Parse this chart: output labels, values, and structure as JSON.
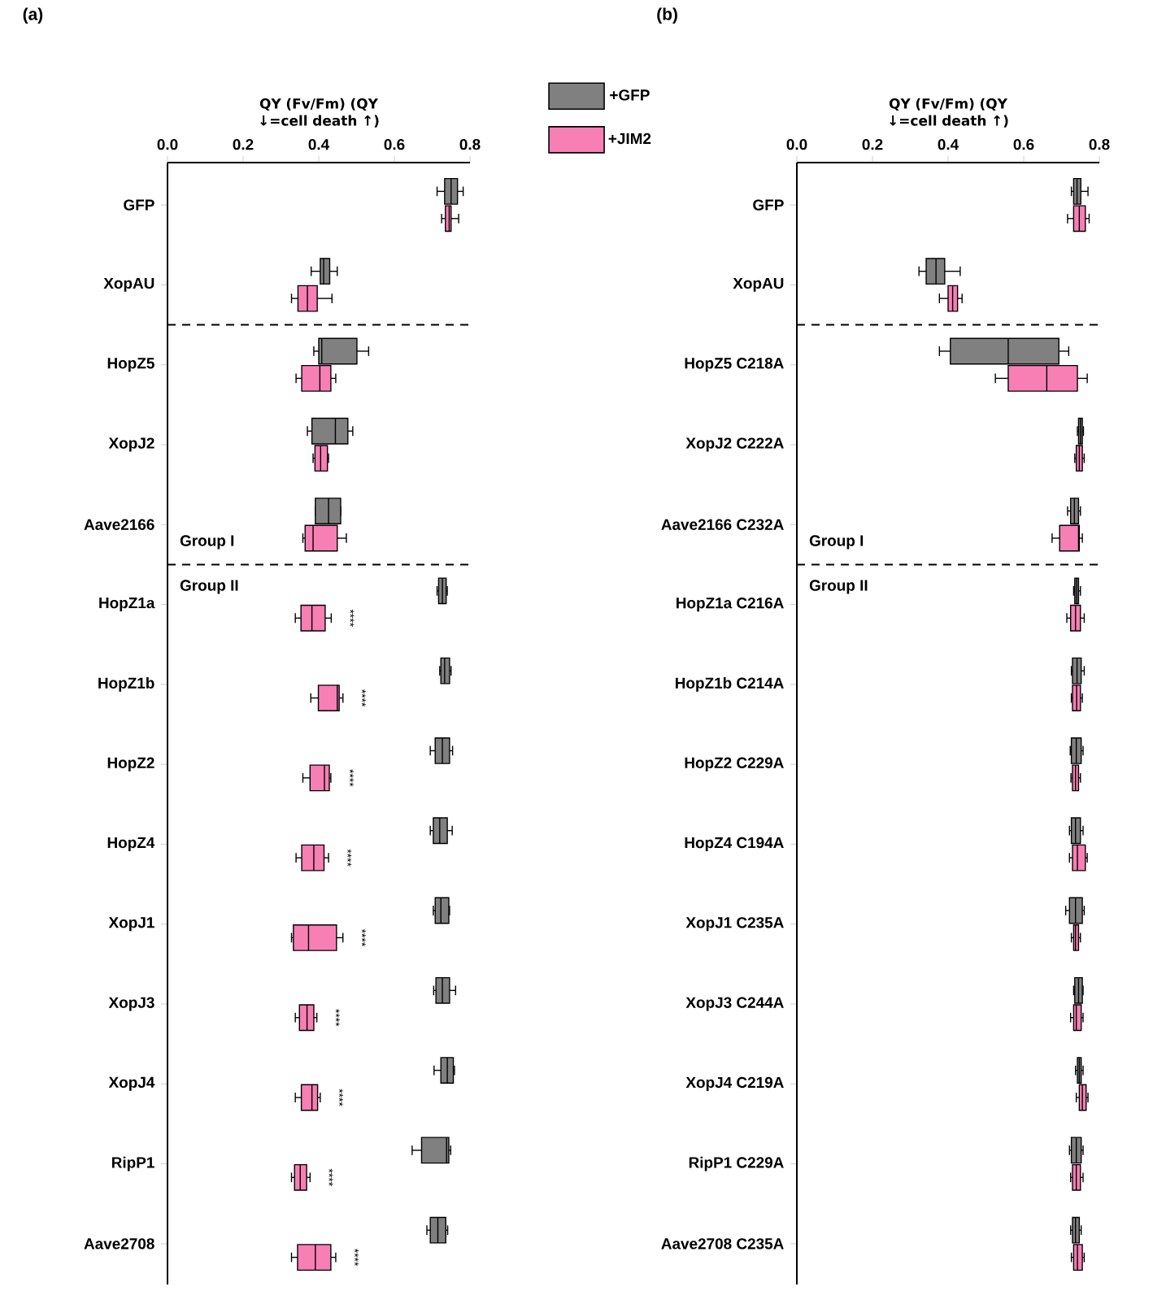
{
  "chart_data": [
    {
      "type": "box",
      "orientation": "horizontal",
      "title": "(a)",
      "xlabel": "QY (Fv/Fm) (QY ↓=cell death ↑)",
      "legend": "top right",
      "categories": [
        "GFP",
        "XopAU",
        "HopZ5",
        "XopJ2",
        "Aave2166",
        "HopZ1a",
        "HopZ1b",
        "HopZ2",
        "HopZ4",
        "XopJ1",
        "XopJ3",
        "XopJ4",
        "RipP1",
        "Aave2708"
      ],
      "xlim": [
        0,
        0.8
      ],
      "xticks": [
        {
          "value": 0,
          "label": "0.0"
        },
        0.2,
        0.4,
        0.6,
        0.8
      ],
      "series": [
        {
          "name": "+GFP",
          "color": "#808080",
          "boxes": [
            {
              "low": 0.713,
              "q1": 0.733,
              "median": 0.75,
              "q3": 0.767,
              "high": 0.782
            },
            {
              "low": 0.38,
              "q1": 0.404,
              "median": 0.413,
              "q3": 0.429,
              "high": 0.449
            },
            {
              "low": 0.387,
              "q1": 0.4,
              "median": 0.408,
              "q3": 0.501,
              "high": 0.532
            },
            {
              "low": 0.37,
              "q1": 0.382,
              "median": 0.444,
              "q3": 0.477,
              "high": 0.49
            },
            {
              "low": 0.391,
              "q1": 0.391,
              "median": 0.426,
              "q3": 0.458,
              "high": 0.458
            },
            {
              "low": 0.713,
              "q1": 0.717,
              "median": 0.727,
              "q3": 0.737,
              "high": 0.74
            },
            {
              "low": 0.72,
              "q1": 0.723,
              "median": 0.733,
              "q3": 0.746,
              "high": 0.75
            },
            {
              "low": 0.695,
              "q1": 0.708,
              "median": 0.727,
              "q3": 0.746,
              "high": 0.754
            },
            {
              "low": 0.695,
              "q1": 0.703,
              "median": 0.72,
              "q3": 0.74,
              "high": 0.753
            },
            {
              "low": 0.703,
              "q1": 0.708,
              "median": 0.723,
              "q3": 0.744,
              "high": 0.746
            },
            {
              "low": 0.704,
              "q1": 0.71,
              "median": 0.727,
              "q3": 0.746,
              "high": 0.762
            },
            {
              "low": 0.705,
              "q1": 0.723,
              "median": 0.74,
              "q3": 0.756,
              "high": 0.759
            },
            {
              "low": 0.647,
              "q1": 0.672,
              "median": 0.738,
              "q3": 0.744,
              "high": 0.749
            },
            {
              "low": 0.686,
              "q1": 0.695,
              "median": 0.715,
              "q3": 0.736,
              "high": 0.741
            }
          ]
        },
        {
          "name": "+JIM2",
          "color": "#f77fb4",
          "boxes": [
            {
              "low": 0.725,
              "q1": 0.735,
              "median": 0.745,
              "q3": 0.75,
              "high": 0.77
            },
            {
              "low": 0.328,
              "q1": 0.345,
              "median": 0.37,
              "q3": 0.396,
              "high": 0.435
            },
            {
              "low": 0.34,
              "q1": 0.355,
              "median": 0.403,
              "q3": 0.432,
              "high": 0.445
            },
            {
              "low": 0.385,
              "q1": 0.39,
              "median": 0.405,
              "q3": 0.423,
              "high": 0.426
            },
            {
              "low": 0.358,
              "q1": 0.364,
              "median": 0.385,
              "q3": 0.449,
              "high": 0.473
            },
            {
              "low": 0.338,
              "q1": 0.353,
              "median": 0.382,
              "q3": 0.417,
              "high": 0.433
            },
            {
              "low": 0.379,
              "q1": 0.399,
              "median": 0.449,
              "q3": 0.454,
              "high": 0.464
            },
            {
              "low": 0.358,
              "q1": 0.377,
              "median": 0.415,
              "q3": 0.428,
              "high": 0.432
            },
            {
              "low": 0.34,
              "q1": 0.355,
              "median": 0.387,
              "q3": 0.414,
              "high": 0.426
            },
            {
              "low": 0.328,
              "q1": 0.333,
              "median": 0.373,
              "q3": 0.447,
              "high": 0.464
            },
            {
              "low": 0.338,
              "q1": 0.349,
              "median": 0.369,
              "q3": 0.387,
              "high": 0.395
            },
            {
              "low": 0.338,
              "q1": 0.354,
              "median": 0.382,
              "q3": 0.397,
              "high": 0.404
            },
            {
              "low": 0.328,
              "q1": 0.336,
              "median": 0.351,
              "q3": 0.368,
              "high": 0.377
            },
            {
              "low": 0.328,
              "q1": 0.344,
              "median": 0.391,
              "q3": 0.432,
              "high": 0.445
            }
          ]
        }
      ],
      "annotations": [
        "Group I",
        "Group II",
        "****",
        "****",
        "****",
        "****",
        "****",
        "****",
        "****",
        "****",
        "****"
      ]
    },
    {
      "type": "box",
      "orientation": "horizontal",
      "title": "(b)",
      "xlabel": "QY (Fv/Fm) (QY ↓=cell death ↑)",
      "categories": [
        "GFP",
        "XopAU",
        "HopZ5 C218A",
        "XopJ2 C222A",
        "Aave2166 C232A",
        "HopZ1a C216A",
        "HopZ1b C214A",
        "HopZ2 C229A",
        "HopZ4 C194A",
        "XopJ1 C235A",
        "XopJ3 C244A",
        "XopJ4 C219A",
        "RipP1 C229A",
        "Aave2708 C235A"
      ],
      "xlim": [
        0,
        0.8
      ],
      "xticks": [
        {
          "value": 0,
          "label": "0.0"
        },
        0.2,
        0.4,
        0.6,
        0.8
      ],
      "series": [
        {
          "color": "#808080",
          "boxes": [
            {
              "low": 0.726,
              "q1": 0.732,
              "median": 0.741,
              "q3": 0.751,
              "high": 0.77
            },
            {
              "low": 0.323,
              "q1": 0.342,
              "median": 0.368,
              "q3": 0.391,
              "high": 0.432
            },
            {
              "low": 0.377,
              "q1": 0.406,
              "median": 0.559,
              "q3": 0.693,
              "high": 0.719
            },
            {
              "low": 0.742,
              "q1": 0.745,
              "median": 0.75,
              "q3": 0.755,
              "high": 0.758
            },
            {
              "low": 0.716,
              "q1": 0.724,
              "median": 0.734,
              "q3": 0.745,
              "high": 0.75
            },
            {
              "low": 0.732,
              "q1": 0.735,
              "median": 0.74,
              "q3": 0.745,
              "high": 0.75
            },
            {
              "low": 0.726,
              "q1": 0.729,
              "median": 0.741,
              "q3": 0.752,
              "high": 0.76
            },
            {
              "low": 0.723,
              "q1": 0.726,
              "median": 0.739,
              "q3": 0.752,
              "high": 0.757
            },
            {
              "low": 0.721,
              "q1": 0.726,
              "median": 0.737,
              "q3": 0.75,
              "high": 0.757
            },
            {
              "low": 0.711,
              "q1": 0.721,
              "median": 0.737,
              "q3": 0.755,
              "high": 0.76
            },
            {
              "low": 0.732,
              "q1": 0.735,
              "median": 0.745,
              "q3": 0.755,
              "high": 0.757
            },
            {
              "low": 0.737,
              "q1": 0.742,
              "median": 0.747,
              "q3": 0.752,
              "high": 0.757
            },
            {
              "low": 0.721,
              "q1": 0.726,
              "median": 0.739,
              "q3": 0.752,
              "high": 0.757
            },
            {
              "low": 0.724,
              "q1": 0.729,
              "median": 0.737,
              "q3": 0.747,
              "high": 0.752
            }
          ]
        },
        {
          "color": "#f77fb4",
          "boxes": [
            {
              "low": 0.716,
              "q1": 0.732,
              "median": 0.747,
              "q3": 0.763,
              "high": 0.773
            },
            {
              "low": 0.377,
              "q1": 0.4,
              "median": 0.412,
              "q3": 0.425,
              "high": 0.437
            },
            {
              "low": 0.525,
              "q1": 0.559,
              "median": 0.661,
              "q3": 0.742,
              "high": 0.768
            },
            {
              "low": 0.735,
              "q1": 0.739,
              "median": 0.747,
              "q3": 0.755,
              "high": 0.76
            },
            {
              "low": 0.675,
              "q1": 0.695,
              "median": 0.745,
              "q3": 0.747,
              "high": 0.755
            },
            {
              "low": 0.714,
              "q1": 0.724,
              "median": 0.737,
              "q3": 0.75,
              "high": 0.76
            },
            {
              "low": 0.726,
              "q1": 0.729,
              "median": 0.74,
              "q3": 0.75,
              "high": 0.755
            },
            {
              "low": 0.725,
              "q1": 0.729,
              "median": 0.737,
              "q3": 0.745,
              "high": 0.75
            },
            {
              "low": 0.721,
              "q1": 0.729,
              "median": 0.742,
              "q3": 0.763,
              "high": 0.768
            },
            {
              "low": 0.726,
              "q1": 0.732,
              "median": 0.737,
              "q3": 0.745,
              "high": 0.75
            },
            {
              "low": 0.724,
              "q1": 0.732,
              "median": 0.739,
              "q3": 0.752,
              "high": 0.757
            },
            {
              "low": 0.739,
              "q1": 0.747,
              "median": 0.755,
              "q3": 0.765,
              "high": 0.77
            },
            {
              "low": 0.724,
              "q1": 0.729,
              "median": 0.739,
              "q3": 0.75,
              "high": 0.757
            },
            {
              "low": 0.726,
              "q1": 0.732,
              "median": 0.742,
              "q3": 0.755,
              "high": 0.76
            }
          ]
        }
      ],
      "annotations": [
        "Group I",
        "Group II"
      ]
    }
  ]
}
